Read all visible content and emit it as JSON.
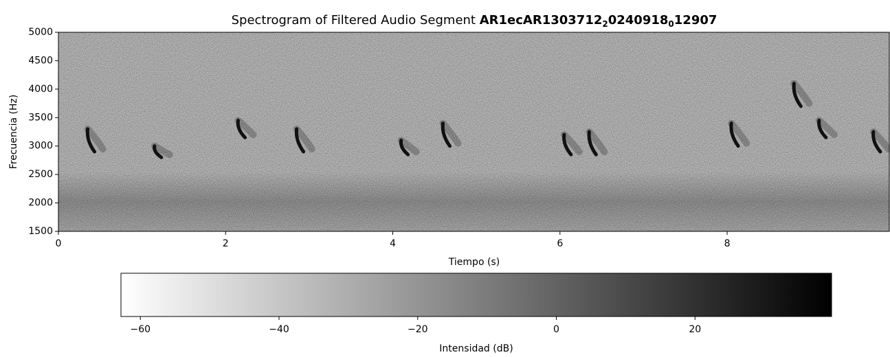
{
  "chart_data": {
    "type": "spectrogram",
    "title": "Spectrogram of Filtered Audio Segment",
    "segment_id": [
      "AR1ecAR1303712",
      "2",
      "0240918",
      "0",
      "12907"
    ],
    "x_label": "Tiempo (s)",
    "y_label": "Frecuencia (Hz)",
    "xlim": [
      0,
      9.94
    ],
    "xticks": [
      0,
      2,
      4,
      6,
      8
    ],
    "ylim": [
      1500,
      5000
    ],
    "yticks": [
      1500,
      2000,
      2500,
      3000,
      3500,
      4000,
      4500,
      5000
    ],
    "calls": {
      "color": "#111111",
      "t": [
        0.35,
        1.15,
        2.15,
        2.85,
        4.1,
        4.6,
        6.05,
        6.35,
        8.05,
        8.8,
        9.1,
        9.75
      ],
      "f_high": [
        3300,
        3000,
        3450,
        3300,
        3100,
        3400,
        3200,
        3250,
        3400,
        4100,
        3450,
        3250
      ],
      "f_low": [
        2900,
        2800,
        3150,
        2900,
        2850,
        3000,
        2850,
        2850,
        3000,
        3700,
        3150,
        2900
      ]
    },
    "colorbar": {
      "label": "Intensidad (dB)",
      "colormap": "gray_r",
      "lim": [
        -62.8,
        39.7
      ],
      "ticks": [
        {
          "value": -60,
          "label": "−60"
        },
        {
          "value": -40,
          "label": "−40"
        },
        {
          "value": -20,
          "label": "−20"
        },
        0,
        20
      ]
    }
  }
}
